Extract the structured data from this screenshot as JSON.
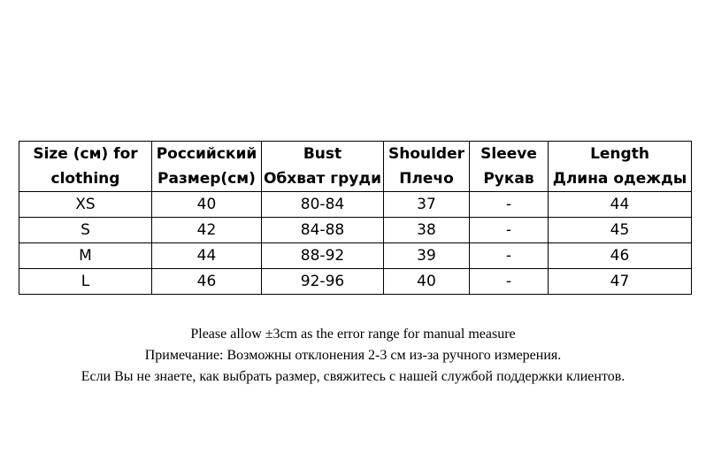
{
  "table": {
    "headers": [
      {
        "line1": "Size (см) for",
        "line2": "clothing"
      },
      {
        "line1": "Российский",
        "line2": "Размер(см)"
      },
      {
        "line1": "Bust",
        "line2": "Обхват груди"
      },
      {
        "line1": "Shoulder",
        "line2": "Плечо"
      },
      {
        "line1": "Sleeve",
        "line2": "Рукав"
      },
      {
        "line1": "Length",
        "line2": "Длина одежды"
      }
    ],
    "rows": [
      [
        "XS",
        "40",
        "80-84",
        "37",
        "-",
        "44"
      ],
      [
        "S",
        "42",
        "84-88",
        "38",
        "-",
        "45"
      ],
      [
        "M",
        "44",
        "88-92",
        "39",
        "-",
        "46"
      ],
      [
        "L",
        "46",
        "92-96",
        "40",
        "-",
        "47"
      ]
    ]
  },
  "notes": [
    "Please allow ±3cm as the error range for manual measure",
    "Примечание: Возможны отклонения 2-3 см из-за ручного измерения.",
    "Если Вы не знаете, как выбрать размер, свяжитесь с нашей службой поддержки клиентов."
  ]
}
